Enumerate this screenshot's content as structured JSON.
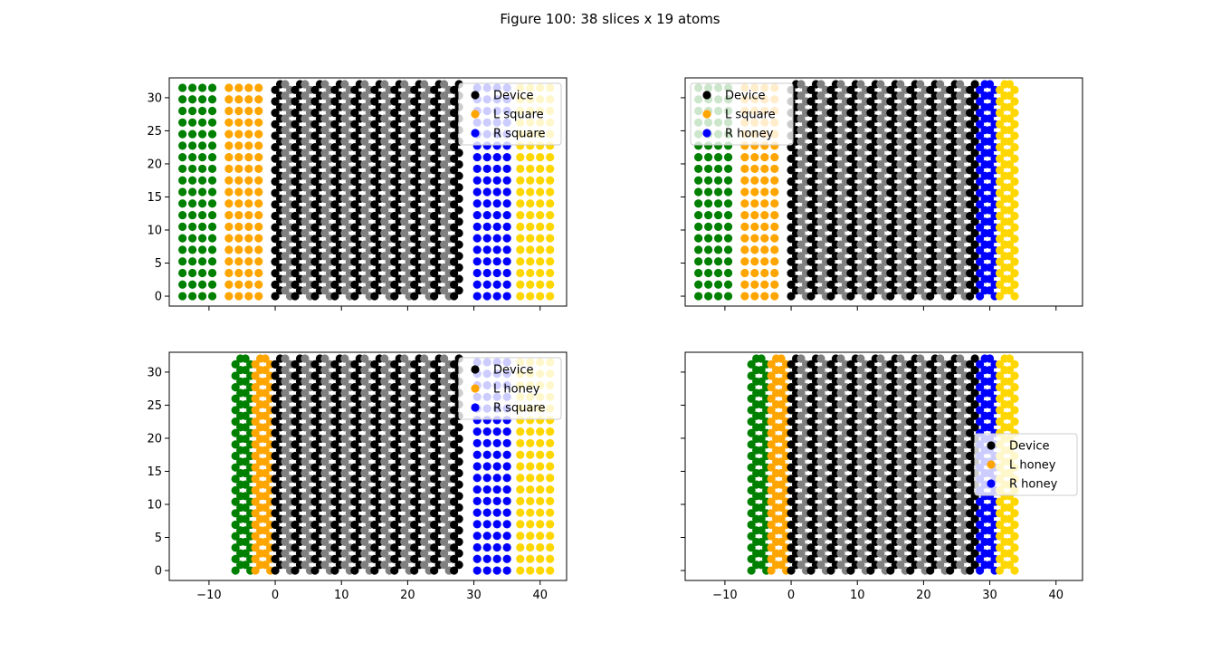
{
  "figure_title": "Figure 100: 38 slices x 19 atoms",
  "colors": {
    "device_a": "#000000",
    "device_b": "#808080",
    "left_lead_outer": "#008000",
    "left_lead_inner": "#ffa500",
    "right_lead_inner": "#0000ff",
    "right_lead_outer": "#ffd700"
  },
  "chart_data": [
    {
      "type": "scatter",
      "panel": "top-left",
      "xlim": [
        -16,
        44
      ],
      "ylim": [
        -1.5,
        33
      ],
      "xticks": [
        -10,
        0,
        10,
        20,
        30,
        40
      ],
      "yticks": [
        0,
        5,
        10,
        15,
        20,
        25,
        30
      ],
      "show_xtick_labels": false,
      "show_ytick_labels": true,
      "legend": {
        "placement": "upper-right",
        "entries": [
          "Device",
          "L square",
          "R square"
        ]
      },
      "device": {
        "x_start": 0,
        "x_step": 0.75,
        "slices": 38,
        "atoms": 19,
        "y_step": 1.732
      },
      "left_lead": {
        "type": "square",
        "x": [
          -14,
          -12.5,
          -11,
          -9.5,
          -7,
          -5.5,
          -4,
          -2.5
        ]
      },
      "right_lead": {
        "type": "square",
        "x": [
          30.5,
          32,
          33.5,
          35,
          37,
          38.5,
          40,
          41.5
        ]
      }
    },
    {
      "type": "scatter",
      "panel": "top-right",
      "xlim": [
        -16,
        44
      ],
      "ylim": [
        -1.5,
        33
      ],
      "xticks": [
        -10,
        0,
        10,
        20,
        30,
        40
      ],
      "yticks": [
        0,
        5,
        10,
        15,
        20,
        25,
        30
      ],
      "show_xtick_labels": false,
      "show_ytick_labels": false,
      "legend": {
        "placement": "upper-left",
        "entries": [
          "Device",
          "L square",
          "R honey"
        ]
      },
      "device": {
        "x_start": 0,
        "x_step": 0.75,
        "slices": 38,
        "atoms": 19,
        "y_step": 1.732
      },
      "left_lead": {
        "type": "square",
        "x": [
          -14,
          -12.5,
          -11,
          -9.5,
          -7,
          -5.5,
          -4,
          -2.5
        ]
      },
      "right_lead": {
        "type": "honey",
        "x": [
          28.5,
          29.25,
          30,
          30.75,
          31.5,
          32.25,
          33,
          33.75
        ]
      }
    },
    {
      "type": "scatter",
      "panel": "bottom-left",
      "xlim": [
        -16,
        44
      ],
      "ylim": [
        -1.5,
        33
      ],
      "xticks": [
        -10,
        0,
        10,
        20,
        30,
        40
      ],
      "yticks": [
        0,
        5,
        10,
        15,
        20,
        25,
        30
      ],
      "show_xtick_labels": true,
      "show_ytick_labels": true,
      "legend": {
        "placement": "upper-right",
        "entries": [
          "Device",
          "L honey",
          "R square"
        ]
      },
      "device": {
        "x_start": 0,
        "x_step": 0.75,
        "slices": 38,
        "atoms": 19,
        "y_step": 1.732
      },
      "left_lead": {
        "type": "honey",
        "x": [
          -6,
          -5.25,
          -4.5,
          -3.75,
          -3,
          -2.25,
          -1.5,
          -0.75
        ]
      },
      "right_lead": {
        "type": "square",
        "x": [
          30.5,
          32,
          33.5,
          35,
          37,
          38.5,
          40,
          41.5
        ]
      }
    },
    {
      "type": "scatter",
      "panel": "bottom-right",
      "xlim": [
        -16,
        44
      ],
      "ylim": [
        -1.5,
        33
      ],
      "xticks": [
        -10,
        0,
        10,
        20,
        30,
        40
      ],
      "yticks": [
        0,
        5,
        10,
        15,
        20,
        25,
        30
      ],
      "show_xtick_labels": true,
      "show_ytick_labels": false,
      "legend": {
        "placement": "center-right",
        "entries": [
          "Device",
          "L honey",
          "R honey"
        ]
      },
      "device": {
        "x_start": 0,
        "x_step": 0.75,
        "slices": 38,
        "atoms": 19,
        "y_step": 1.732
      },
      "left_lead": {
        "type": "honey",
        "x": [
          -6,
          -5.25,
          -4.5,
          -3.75,
          -3,
          -2.25,
          -1.5,
          -0.75
        ]
      },
      "right_lead": {
        "type": "honey",
        "x": [
          28.5,
          29.25,
          30,
          30.75,
          31.5,
          32.25,
          33,
          33.75
        ]
      }
    }
  ]
}
